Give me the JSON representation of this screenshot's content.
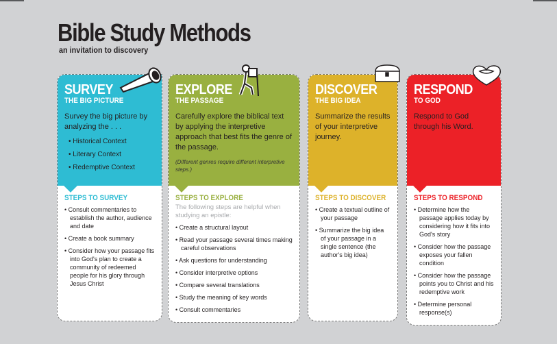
{
  "header": {
    "title": "Bible Study Methods",
    "subtitle": "an invitation to discovery"
  },
  "colors": {
    "survey": "#2ebcd3",
    "explore": "#99b040",
    "discover": "#ddb22a",
    "respond": "#ec2127",
    "background": "#d1d2d4"
  },
  "cards": [
    {
      "title": "SURVEY",
      "subtitle": "THE BIG PICTURE",
      "description": "Survey the big picture by analyzing the . . .",
      "contexts": [
        "Historical Context",
        "Literary Context",
        "Redemptive Context"
      ],
      "icon": "telescope-icon",
      "steps_title": "STEPS TO SURVEY",
      "steps": [
        "Consult commentaries to establish the author, audience and date",
        "Create a book summary",
        "Consider how your passage fits into God's plan to create a community of redeemed people for his glory through Jesus Christ"
      ]
    },
    {
      "title": "EXPLORE",
      "subtitle": "THE PASSAGE",
      "description": "Carefully explore the biblical text by applying the interpretive approach that best fits the genre of the passage.",
      "note": "(Different genres require different interpretive steps.)",
      "icon": "hiker-icon",
      "steps_title": "STEPS TO EXPLORE",
      "steps_intro": "The following steps are helpful when studying an epistle:",
      "steps": [
        "Create a structural layout",
        "Read your passage several times making careful observations",
        "Ask questions for understanding",
        "Consider interpretive options",
        "Compare several translations",
        "Study the meaning of key words",
        "Consult commentaries"
      ]
    },
    {
      "title": "DISCOVER",
      "subtitle": "THE BIG IDEA",
      "description": "Summarize the results of your interpretive journey.",
      "icon": "treasure-chest-icon",
      "steps_title": "STEPS TO DISCOVER",
      "steps": [
        "Create a textual outline of your passage",
        "Summarize the big idea of your passage in a single sentence (the author's big idea)"
      ]
    },
    {
      "title": "RESPOND",
      "subtitle": "TO GOD",
      "description": "Respond to God through his Word.",
      "icon": "heart-icon",
      "steps_title": "STEPS TO RESPOND",
      "steps": [
        "Determine how the passage applies today by considering how it fits into God's story",
        "Consider how the passage exposes your fallen condition",
        "Consider how the passage points you to Christ and his redemptive work",
        "Determine personal response(s)"
      ]
    }
  ]
}
